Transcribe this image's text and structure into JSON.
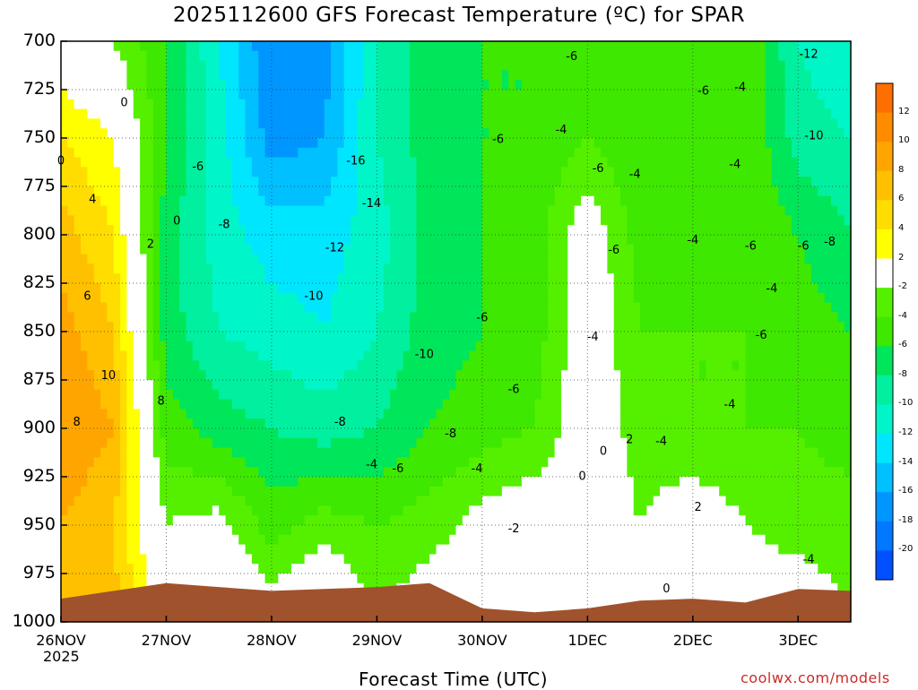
{
  "title": "2025112600 GFS Forecast Temperature (ºC) for SPAR",
  "source": "coolwx.com/models",
  "colorbar_labels": [
    "12",
    "10",
    "8",
    "6",
    "4",
    "2",
    "-2",
    "-4",
    "-6",
    "-8",
    "-10",
    "-12",
    "-14",
    "-16",
    "-18",
    "-20"
  ],
  "colors": {
    "ground": "#a0522d",
    "zero_contour": "#c71585",
    "t_bins": [
      {
        "min": 12,
        "color": "#ff6e00"
      },
      {
        "min": 10,
        "color": "#ff8c00"
      },
      {
        "min": 8,
        "color": "#ffa500"
      },
      {
        "min": 6,
        "color": "#ffc000"
      },
      {
        "min": 4,
        "color": "#ffdd00"
      },
      {
        "min": 2,
        "color": "#ffff00"
      },
      {
        "min": -2,
        "color": "#ffffff"
      },
      {
        "min": -4,
        "color": "#55f000"
      },
      {
        "min": -6,
        "color": "#3ee800"
      },
      {
        "min": -8,
        "color": "#00e65a"
      },
      {
        "min": -10,
        "color": "#00f0a0"
      },
      {
        "min": -12,
        "color": "#00f5c8"
      },
      {
        "min": -14,
        "color": "#00e6ff"
      },
      {
        "min": -16,
        "color": "#00c0ff"
      },
      {
        "min": -18,
        "color": "#0096ff"
      },
      {
        "min": -20,
        "color": "#0078ff"
      },
      {
        "min": -99,
        "color": "#0050ff"
      }
    ]
  },
  "chart_data": {
    "type": "heatmap",
    "title": "2025112600 GFS Forecast Temperature (ºC) for SPAR",
    "xlabel": "Forecast Time (UTC)",
    "ylabel": "",
    "x_tick_labels": [
      "26NOV",
      "27NOV",
      "28NOV",
      "29NOV",
      "30NOV",
      "1DEC",
      "2DEC",
      "3DEC"
    ],
    "x_year_label": "2025",
    "y_tick_labels": [
      "700",
      "725",
      "750",
      "775",
      "800",
      "825",
      "850",
      "875",
      "900",
      "925",
      "950",
      "975",
      "1000"
    ],
    "y_ticks": [
      700,
      725,
      750,
      775,
      800,
      825,
      850,
      875,
      900,
      925,
      950,
      975,
      1000
    ],
    "ylim": [
      1000,
      700
    ],
    "x_day_range": [
      0,
      7.5
    ],
    "contour_levels": [
      -20,
      -18,
      -16,
      -14,
      -12,
      -10,
      -8,
      -6,
      -4,
      -2,
      0,
      2,
      4,
      6,
      8,
      10,
      12
    ],
    "x": [
      0.0,
      0.5,
      1.0,
      1.5,
      2.0,
      2.5,
      3.0,
      3.5,
      4.0,
      4.5,
      5.0,
      5.5,
      6.0,
      6.5,
      7.0,
      7.5
    ],
    "z_levels": [
      700,
      750,
      800,
      850,
      900,
      950,
      1000
    ],
    "temperature": [
      [
        0,
        -2,
        -6,
        -12,
        -18,
        -17,
        -10,
        -7,
        -6,
        -6,
        -4,
        -6,
        -5,
        -4,
        -10,
        -12
      ],
      [
        4,
        2,
        -6,
        -11,
        -17,
        -16,
        -10,
        -7,
        -6,
        -6,
        -4,
        -6,
        -4,
        -4,
        -9,
        -10
      ],
      [
        7,
        4,
        -7,
        -11,
        -13,
        -13,
        -11,
        -7,
        -6,
        -5,
        0,
        -5,
        -5,
        -4,
        -6,
        -8
      ],
      [
        9,
        6,
        -7,
        -10,
        -11,
        -12,
        -10,
        -7,
        -6,
        -5,
        0,
        -4,
        -4,
        -4,
        -5,
        -6
      ],
      [
        10,
        8,
        -5,
        -7,
        -8,
        -9,
        -8,
        -6,
        -5,
        -4,
        0,
        -3,
        -4,
        -4,
        -4,
        -5
      ],
      [
        8,
        6,
        -2,
        -1,
        -5,
        -3,
        -4,
        -3,
        -1,
        0,
        0,
        -2,
        0,
        -2,
        -3,
        -3
      ],
      [
        8,
        7,
        0,
        3,
        0,
        2,
        -2,
        0,
        0,
        2,
        2,
        0,
        2,
        0,
        0,
        -2
      ]
    ],
    "ground_pressure": [
      988,
      984,
      980,
      982,
      984,
      983,
      982,
      980,
      993,
      995,
      993,
      989,
      988,
      990,
      983,
      984
    ],
    "contour_labels": [
      {
        "text": "0",
        "x": 0.0,
        "p": 762
      },
      {
        "text": "0",
        "x": 0.6,
        "p": 732
      },
      {
        "text": "4",
        "x": 0.3,
        "p": 782
      },
      {
        "text": "2",
        "x": 0.85,
        "p": 805
      },
      {
        "text": "0",
        "x": 1.1,
        "p": 793
      },
      {
        "text": "6",
        "x": 0.25,
        "p": 832
      },
      {
        "text": "10",
        "x": 0.45,
        "p": 873
      },
      {
        "text": "8",
        "x": 0.15,
        "p": 897
      },
      {
        "text": "8",
        "x": 0.95,
        "p": 886
      },
      {
        "text": "-6",
        "x": 1.3,
        "p": 765
      },
      {
        "text": "-8",
        "x": 1.55,
        "p": 795
      },
      {
        "text": "-16",
        "x": 2.8,
        "p": 762
      },
      {
        "text": "-14",
        "x": 2.95,
        "p": 784
      },
      {
        "text": "-12",
        "x": 2.6,
        "p": 807
      },
      {
        "text": "-10",
        "x": 2.4,
        "p": 832
      },
      {
        "text": "-8",
        "x": 2.65,
        "p": 897
      },
      {
        "text": "-4",
        "x": 2.95,
        "p": 919
      },
      {
        "text": "-6",
        "x": 3.2,
        "p": 921
      },
      {
        "text": "-10",
        "x": 3.45,
        "p": 862
      },
      {
        "text": "-8",
        "x": 3.7,
        "p": 903
      },
      {
        "text": "-4",
        "x": 3.95,
        "p": 921
      },
      {
        "text": "-2",
        "x": 4.3,
        "p": 952
      },
      {
        "text": "-6",
        "x": 4.0,
        "p": 843
      },
      {
        "text": "-6",
        "x": 4.3,
        "p": 880
      },
      {
        "text": "-6",
        "x": 4.15,
        "p": 751
      },
      {
        "text": "-6",
        "x": 4.85,
        "p": 708
      },
      {
        "text": "-4",
        "x": 4.75,
        "p": 746
      },
      {
        "text": "-6",
        "x": 5.1,
        "p": 766
      },
      {
        "text": "-4",
        "x": 5.45,
        "p": 769
      },
      {
        "text": "-6",
        "x": 5.25,
        "p": 808
      },
      {
        "text": "-4",
        "x": 5.05,
        "p": 853
      },
      {
        "text": "0",
        "x": 5.15,
        "p": 912
      },
      {
        "text": "0",
        "x": 4.95,
        "p": 925
      },
      {
        "text": "2",
        "x": 5.4,
        "p": 906
      },
      {
        "text": "-4",
        "x": 5.7,
        "p": 907
      },
      {
        "text": "2",
        "x": 6.05,
        "p": 941
      },
      {
        "text": "0",
        "x": 5.75,
        "p": 983
      },
      {
        "text": "-6",
        "x": 6.1,
        "p": 726
      },
      {
        "text": "-4",
        "x": 6.45,
        "p": 724
      },
      {
        "text": "-4",
        "x": 6.4,
        "p": 764
      },
      {
        "text": "-4",
        "x": 6.0,
        "p": 803
      },
      {
        "text": "-6",
        "x": 6.55,
        "p": 806
      },
      {
        "text": "-4",
        "x": 6.75,
        "p": 828
      },
      {
        "text": "-6",
        "x": 6.65,
        "p": 852
      },
      {
        "text": "-4",
        "x": 6.35,
        "p": 888
      },
      {
        "text": "-6",
        "x": 7.05,
        "p": 806
      },
      {
        "text": "-8",
        "x": 7.3,
        "p": 804
      },
      {
        "text": "-12",
        "x": 7.1,
        "p": 707
      },
      {
        "text": "-10",
        "x": 7.15,
        "p": 749
      },
      {
        "text": "-4",
        "x": 7.1,
        "p": 968
      }
    ]
  }
}
